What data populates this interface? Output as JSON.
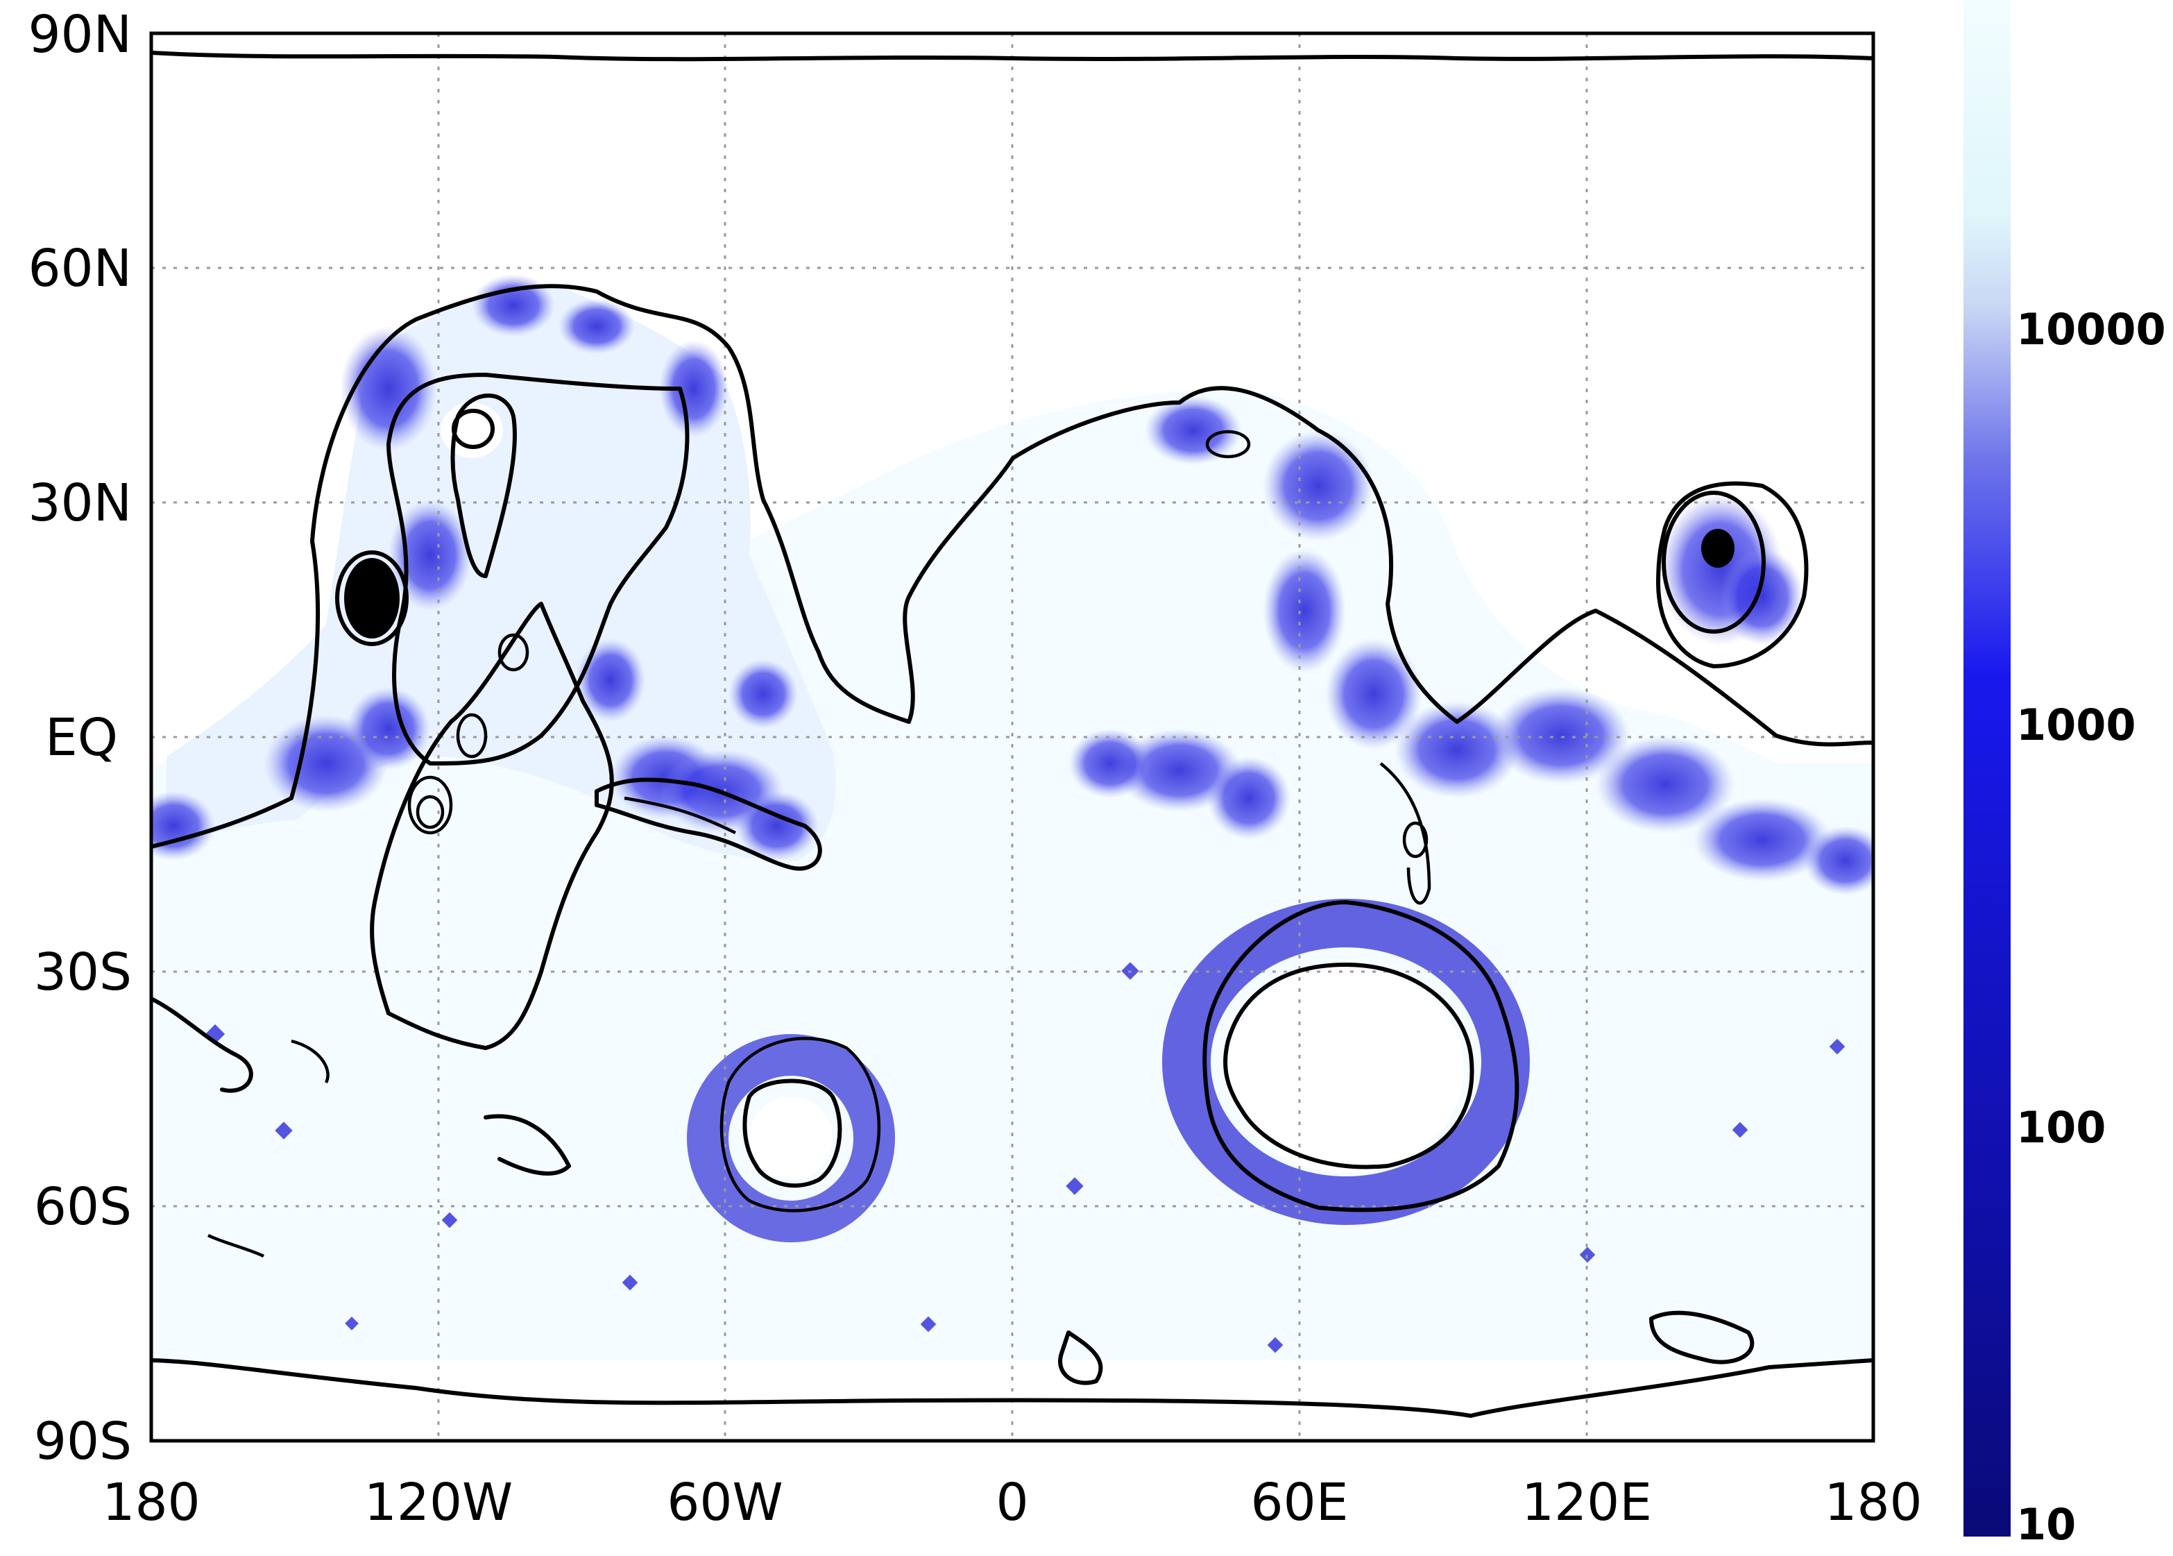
{
  "map": {
    "y_axis_labels": [
      "90N",
      "60N",
      "30N",
      "EQ",
      "30S",
      "60S",
      "90S"
    ],
    "x_axis_labels": [
      "180",
      "120W",
      "60W",
      "0",
      "60E",
      "120E",
      "180"
    ],
    "colorbar": {
      "scale": "log",
      "range": [
        10,
        30000
      ],
      "tick_labels": [
        "10000",
        "1000",
        "100",
        "10"
      ],
      "color_high": "#ecfdff",
      "color_mid": "#1a1ae6",
      "color_low": "#0b0b80"
    },
    "contour_color": "#000000",
    "shading_color": "#2828e0",
    "grid": "dotted"
  }
}
